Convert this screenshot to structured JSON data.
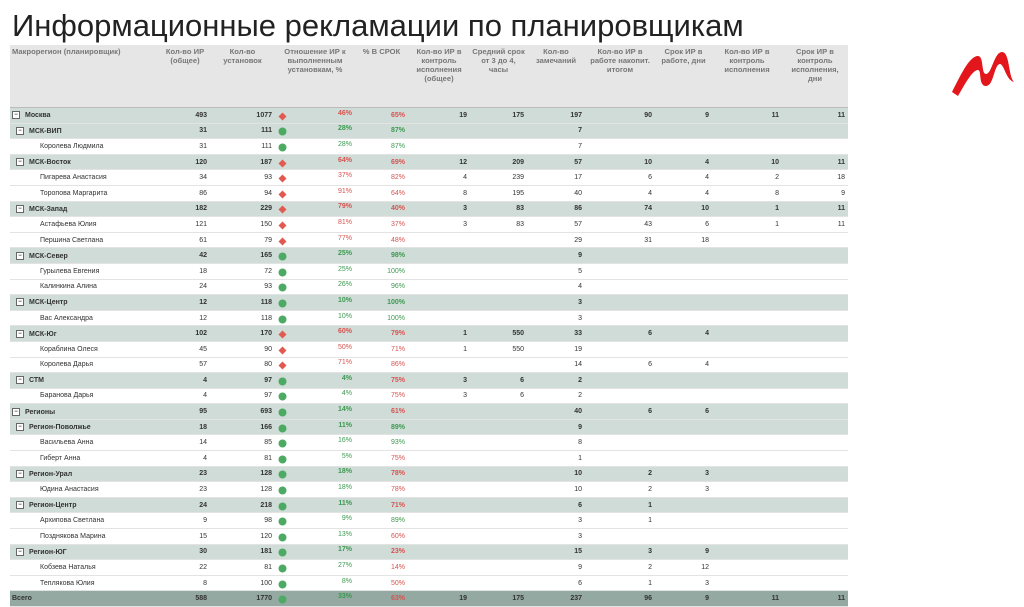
{
  "title": "Информационные рекламации по планировщикам",
  "table": {
    "columns": [
      "Макрорегион (планировщик)",
      "Кол-во ИР (общее)",
      "Кол-во установок",
      "Отношение ИР к выполненным установкам, %",
      "% В СРОК",
      "Кол-во ИР в контроль исполнения (общее)",
      "Средний срок от 3 до 4, часы",
      "Кол-во замечаний",
      "Кол-во ИР в работе накопит. итогом",
      "Срок ИР в работе, дни",
      "Кол-во ИР в контроль исполнения",
      "Срок ИР в контроль исполнения, дни"
    ],
    "rows": [
      {
        "style": "group",
        "name": "Москва",
        "cells": [
          493,
          1077,
          "46%",
          "65%",
          19,
          175,
          197,
          90,
          9,
          11,
          11
        ],
        "icon": "diamond",
        "ontime_color": "#d9534f"
      },
      {
        "style": "subgroup",
        "name": "МСК-ВИП",
        "cells": [
          31,
          111,
          "28%",
          "87%",
          null,
          null,
          7,
          null,
          null,
          null,
          null
        ],
        "icon": "circle",
        "ontime_color": "#3c9a4f"
      },
      {
        "style": "person",
        "name": "Королева Людмила",
        "cells": [
          31,
          111,
          "28%",
          "87%",
          null,
          null,
          7,
          null,
          null,
          null,
          null
        ],
        "icon": "circle",
        "ontime_color": "#3c9a4f"
      },
      {
        "style": "subgroup",
        "name": "МСК-Восток",
        "cells": [
          120,
          187,
          "64%",
          "69%",
          12,
          209,
          57,
          10,
          4,
          10,
          11
        ],
        "icon": "diamond",
        "ontime_color": "#d9534f"
      },
      {
        "style": "person",
        "name": "Пигарева Анастасия",
        "cells": [
          34,
          93,
          "37%",
          "82%",
          4,
          239,
          17,
          6,
          4,
          2,
          18
        ],
        "icon": "diamond",
        "ontime_color": "#d9534f"
      },
      {
        "style": "person",
        "name": "Торопова Маргарита",
        "cells": [
          86,
          94,
          "91%",
          "64%",
          8,
          195,
          40,
          4,
          4,
          8,
          9
        ],
        "icon": "diamond",
        "ontime_color": "#d9534f"
      },
      {
        "style": "subgroup",
        "name": "МСК-Запад",
        "cells": [
          182,
          229,
          "79%",
          "40%",
          3,
          83,
          86,
          74,
          10,
          1,
          11
        ],
        "icon": "diamond",
        "ontime_color": "#d9534f"
      },
      {
        "style": "person",
        "name": "Астафьева Юлия",
        "cells": [
          121,
          150,
          "81%",
          "37%",
          3,
          83,
          57,
          43,
          6,
          1,
          11
        ],
        "icon": "diamond",
        "ontime_color": "#d9534f"
      },
      {
        "style": "person",
        "name": "Першина Светлана",
        "cells": [
          61,
          79,
          "77%",
          "48%",
          null,
          null,
          29,
          31,
          18,
          null,
          null
        ],
        "icon": "diamond",
        "ontime_color": "#d9534f"
      },
      {
        "style": "subgroup",
        "name": "МСК-Север",
        "cells": [
          42,
          165,
          "25%",
          "98%",
          null,
          null,
          9,
          null,
          null,
          null,
          null
        ],
        "icon": "circle",
        "ontime_color": "#3c9a4f"
      },
      {
        "style": "person",
        "name": "Гурылева Евгения",
        "cells": [
          18,
          72,
          "25%",
          "100%",
          null,
          null,
          5,
          null,
          null,
          null,
          null
        ],
        "icon": "circle",
        "ontime_color": "#3c9a4f"
      },
      {
        "style": "person",
        "name": "Калинкина Алина",
        "cells": [
          24,
          93,
          "26%",
          "96%",
          null,
          null,
          4,
          null,
          null,
          null,
          null
        ],
        "icon": "circle",
        "ontime_color": "#3c9a4f"
      },
      {
        "style": "subgroup",
        "name": "МСК-Центр",
        "cells": [
          12,
          118,
          "10%",
          "100%",
          null,
          null,
          3,
          null,
          null,
          null,
          null
        ],
        "icon": "circle",
        "ontime_color": "#3c9a4f"
      },
      {
        "style": "person",
        "name": "Вас Александра",
        "cells": [
          12,
          118,
          "10%",
          "100%",
          null,
          null,
          3,
          null,
          null,
          null,
          null
        ],
        "icon": "circle",
        "ontime_color": "#3c9a4f"
      },
      {
        "style": "subgroup",
        "name": "МСК-Юг",
        "cells": [
          102,
          170,
          "60%",
          "79%",
          1,
          550,
          33,
          6,
          4,
          null,
          null
        ],
        "icon": "diamond",
        "ontime_color": "#d9534f"
      },
      {
        "style": "person",
        "name": "Кораблина Олеся",
        "cells": [
          45,
          90,
          "50%",
          "71%",
          1,
          550,
          19,
          null,
          null,
          null,
          null
        ],
        "icon": "diamond",
        "ontime_color": "#d9534f"
      },
      {
        "style": "person",
        "name": "Королева Дарья",
        "cells": [
          57,
          80,
          "71%",
          "86%",
          null,
          null,
          14,
          6,
          4,
          null,
          null
        ],
        "icon": "diamond",
        "ontime_color": "#d9534f"
      },
      {
        "style": "subgroup",
        "name": "СТМ",
        "cells": [
          4,
          97,
          "4%",
          "75%",
          3,
          6,
          2,
          null,
          null,
          null,
          null
        ],
        "icon": "circle",
        "ontime_color": "#d9534f"
      },
      {
        "style": "person",
        "name": "Баранова Дарья",
        "cells": [
          4,
          97,
          "4%",
          "75%",
          3,
          6,
          2,
          null,
          null,
          null,
          null
        ],
        "icon": "circle",
        "ontime_color": "#d9534f"
      },
      {
        "style": "group",
        "name": "Регионы",
        "cells": [
          95,
          693,
          "14%",
          "61%",
          null,
          null,
          40,
          6,
          6,
          null,
          null
        ],
        "icon": "circle",
        "ontime_color": "#d9534f"
      },
      {
        "style": "subgroup",
        "name": "Регион-Поволжье",
        "cells": [
          18,
          166,
          "11%",
          "89%",
          null,
          null,
          9,
          null,
          null,
          null,
          null
        ],
        "icon": "circle",
        "ontime_color": "#3c9a4f"
      },
      {
        "style": "person",
        "name": "Васильева Анна",
        "cells": [
          14,
          85,
          "16%",
          "93%",
          null,
          null,
          8,
          null,
          null,
          null,
          null
        ],
        "icon": "circle",
        "ontime_color": "#3c9a4f"
      },
      {
        "style": "person",
        "name": "Гиберт Анна",
        "cells": [
          4,
          81,
          "5%",
          "75%",
          null,
          null,
          1,
          null,
          null,
          null,
          null
        ],
        "icon": "circle",
        "ontime_color": "#d9534f"
      },
      {
        "style": "subgroup",
        "name": "Регион-Урал",
        "cells": [
          23,
          128,
          "18%",
          "78%",
          null,
          null,
          10,
          2,
          3,
          null,
          null
        ],
        "icon": "circle",
        "ontime_color": "#d9534f"
      },
      {
        "style": "person",
        "name": "Юдина Анастасия",
        "cells": [
          23,
          128,
          "18%",
          "78%",
          null,
          null,
          10,
          2,
          3,
          null,
          null
        ],
        "icon": "circle",
        "ontime_color": "#d9534f"
      },
      {
        "style": "subgroup",
        "name": "Регион-Центр",
        "cells": [
          24,
          218,
          "11%",
          "71%",
          null,
          null,
          6,
          1,
          null,
          null,
          null
        ],
        "icon": "circle",
        "ontime_color": "#d9534f"
      },
      {
        "style": "person",
        "name": "Архипова Светлана",
        "cells": [
          9,
          98,
          "9%",
          "89%",
          null,
          null,
          3,
          1,
          null,
          null,
          null
        ],
        "icon": "circle",
        "ontime_color": "#3c9a4f"
      },
      {
        "style": "person",
        "name": "Позднякова Марина",
        "cells": [
          15,
          120,
          "13%",
          "60%",
          null,
          null,
          3,
          null,
          null,
          null,
          null
        ],
        "icon": "circle",
        "ontime_color": "#d9534f"
      },
      {
        "style": "subgroup",
        "name": "Регион-ЮГ",
        "cells": [
          30,
          181,
          "17%",
          "23%",
          null,
          null,
          15,
          3,
          9,
          null,
          null
        ],
        "icon": "circle",
        "ontime_color": "#d9534f"
      },
      {
        "style": "person",
        "name": "Кобзева Наталья",
        "cells": [
          22,
          81,
          "27%",
          "14%",
          null,
          null,
          9,
          2,
          12,
          null,
          null
        ],
        "icon": "circle",
        "ontime_color": "#d9534f"
      },
      {
        "style": "person",
        "name": "Теплякова Юлия",
        "cells": [
          8,
          100,
          "8%",
          "50%",
          null,
          null,
          6,
          1,
          3,
          null,
          null
        ],
        "icon": "circle",
        "ontime_color": "#d9534f"
      },
      {
        "style": "total",
        "name": "Всего",
        "cells": [
          588,
          1770,
          "33%",
          "63%",
          19,
          175,
          237,
          96,
          9,
          11,
          11
        ],
        "icon": "circle",
        "ontime_color": "#d9534f"
      }
    ]
  }
}
